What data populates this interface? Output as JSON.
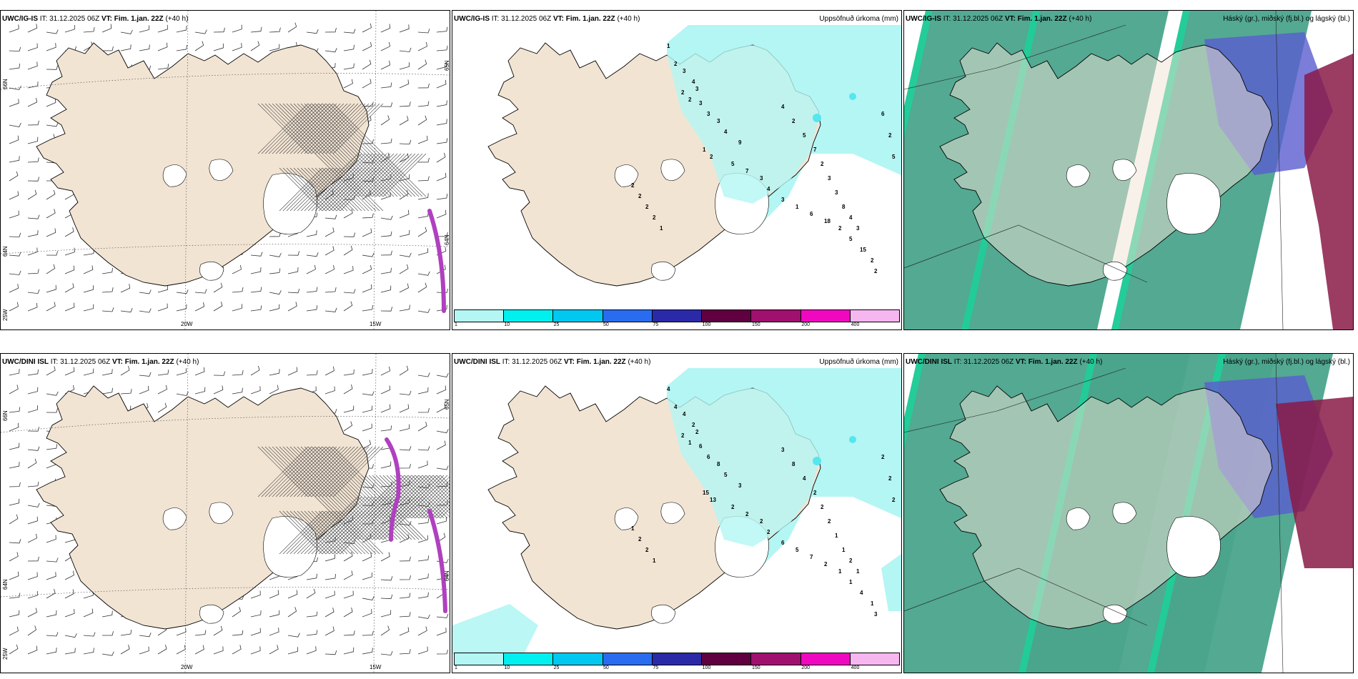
{
  "colors": {
    "land": "#f2e4d3",
    "sea": "#ffffff",
    "precip_light": "#b3f6f4",
    "precip_mid": "#55e6ee",
    "cloud_high": "#4aa48c",
    "cloud_mid": "#1fcf9a",
    "cloud_low": "#5a5ccf",
    "cloud_deep": "#8a1a48",
    "magenta": "#b040c0"
  },
  "colorbar": {
    "swatches": [
      "#b3f6f4",
      "#00f0f0",
      "#00c8f0",
      "#2a6cf0",
      "#2a2aa8",
      "#600040",
      "#a0106e",
      "#f008c0",
      "#f6b6f0"
    ],
    "labels": [
      "1",
      "10",
      "25",
      "50",
      "75",
      "100",
      "150",
      "200",
      "400"
    ]
  },
  "rows": [
    {
      "model": "UWC/IG-IS",
      "it_label": "IT:",
      "it_value": "31.12.2025 06Z",
      "vt_label": "VT: Fim. 1.jan. 22Z",
      "lead": "(+40 h)",
      "wind": {
        "lat_labels": [
          "66N",
          "64N",
          "25W"
        ],
        "lon_labels": [
          "20W",
          "15W"
        ],
        "right_lat_labels": [
          "65N",
          "64N"
        ]
      },
      "precip": {
        "title": "Uppsöfnuð úrkoma (mm)",
        "numbers": [
          {
            "v": "1"
          },
          {
            "v": "2"
          },
          {
            "v": "3"
          },
          {
            "v": "4"
          },
          {
            "v": "3"
          },
          {
            "v": "2"
          },
          {
            "v": "2"
          },
          {
            "v": "3"
          },
          {
            "v": "3"
          },
          {
            "v": "3"
          },
          {
            "v": "4"
          },
          {
            "v": "9"
          },
          {
            "v": "1"
          },
          {
            "v": "2"
          },
          {
            "v": "5"
          },
          {
            "v": "7"
          },
          {
            "v": "3"
          },
          {
            "v": "4"
          },
          {
            "v": "3"
          },
          {
            "v": "1"
          },
          {
            "v": "6"
          },
          {
            "v": "18"
          },
          {
            "v": "2"
          },
          {
            "v": "5"
          },
          {
            "v": "15"
          },
          {
            "v": "2"
          },
          {
            "v": "2"
          },
          {
            "v": "6"
          },
          {
            "v": "2"
          },
          {
            "v": "5"
          },
          {
            "v": "4"
          },
          {
            "v": "2"
          },
          {
            "v": "5"
          },
          {
            "v": "7"
          },
          {
            "v": "2"
          },
          {
            "v": "3"
          },
          {
            "v": "3"
          },
          {
            "v": "8"
          },
          {
            "v": "4"
          },
          {
            "v": "3"
          },
          {
            "v": "2"
          },
          {
            "v": "2"
          },
          {
            "v": "2"
          },
          {
            "v": "2"
          },
          {
            "v": "1"
          }
        ]
      },
      "cloud": {
        "title": "Háský (gr.), miðský (fj.bl.) og lágský (bl.)"
      }
    },
    {
      "model": "UWC/DINI ISL",
      "it_label": "IT:",
      "it_value": "31.12.2025 06Z",
      "vt_label": "VT: Fim. 1.jan. 22Z",
      "lead": "(+40 h)",
      "wind": {
        "lat_labels": [
          "66N",
          "64N",
          "25W"
        ],
        "lon_labels": [
          "20W",
          "15W"
        ],
        "right_lat_labels": [
          "65N",
          "64N"
        ]
      },
      "precip": {
        "title": "Uppsöfnuð úrkoma (mm)",
        "numbers": [
          {
            "v": "4"
          },
          {
            "v": "4"
          },
          {
            "v": "4"
          },
          {
            "v": "2"
          },
          {
            "v": "2"
          },
          {
            "v": "2"
          },
          {
            "v": "1"
          },
          {
            "v": "6"
          },
          {
            "v": "6"
          },
          {
            "v": "8"
          },
          {
            "v": "5"
          },
          {
            "v": "3"
          },
          {
            "v": "15"
          },
          {
            "v": "13"
          },
          {
            "v": "2"
          },
          {
            "v": "2"
          },
          {
            "v": "2"
          },
          {
            "v": "2"
          },
          {
            "v": "6"
          },
          {
            "v": "5"
          },
          {
            "v": "7"
          },
          {
            "v": "2"
          },
          {
            "v": "1"
          },
          {
            "v": "1"
          },
          {
            "v": "4"
          },
          {
            "v": "1"
          },
          {
            "v": "3"
          },
          {
            "v": "2"
          },
          {
            "v": "2"
          },
          {
            "v": "2"
          },
          {
            "v": "3"
          },
          {
            "v": "8"
          },
          {
            "v": "4"
          },
          {
            "v": "2"
          },
          {
            "v": "2"
          },
          {
            "v": "2"
          },
          {
            "v": "1"
          },
          {
            "v": "1"
          },
          {
            "v": "2"
          },
          {
            "v": "1"
          },
          {
            "v": "1"
          },
          {
            "v": "2"
          },
          {
            "v": "2"
          },
          {
            "v": "1"
          }
        ]
      },
      "cloud": {
        "title": "Háský (gr.), miðský (fj.bl.) og lágský (bl.)"
      }
    }
  ]
}
